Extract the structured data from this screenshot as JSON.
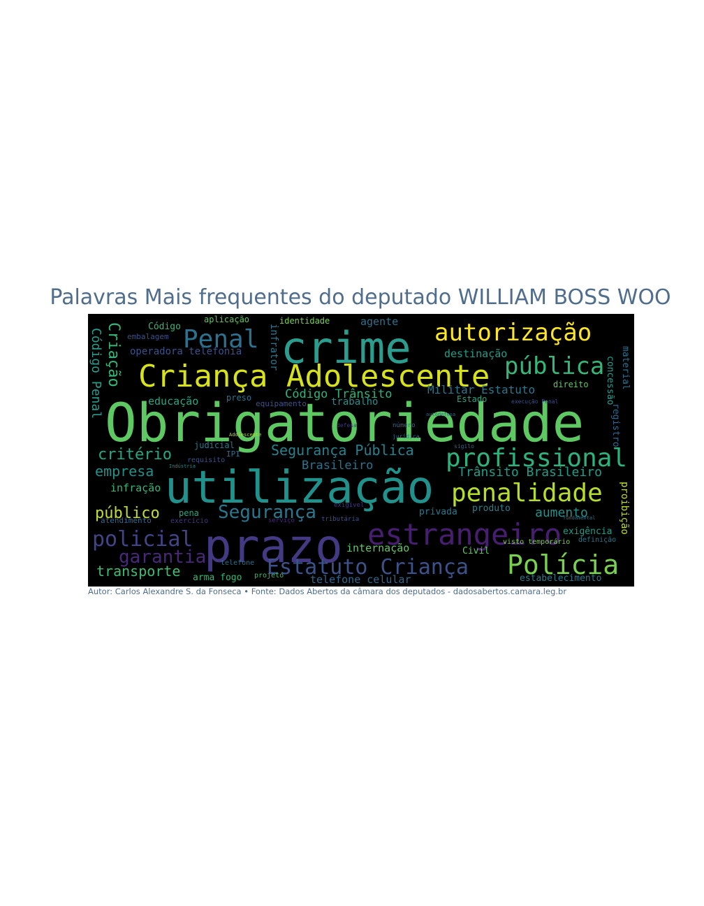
{
  "title": "Palavras Mais frequentes do deputado WILLIAM BOSS WOO",
  "caption": "Autor: Carlos Alexandre S. da Fonseca • Fonte: Dados Abertos da câmara dos deputados - dadosabertos.camara.leg.br",
  "word_cloud": {
    "background_color": "#000000",
    "palette": "viridis",
    "words": [
      {
        "text": "Obrigatoriedade",
        "color": "#5ec962"
      },
      {
        "text": "utilização",
        "color": "#21918c"
      },
      {
        "text": "prazo",
        "color": "#443983"
      },
      {
        "text": "crime",
        "color": "#2a9d8f"
      },
      {
        "text": "Criança Adolescente",
        "color": "#d8e219"
      },
      {
        "text": "estrangeiro",
        "color": "#481f70"
      },
      {
        "text": "Penal",
        "color": "#2c728e"
      },
      {
        "text": "autorização",
        "color": "#fde725"
      },
      {
        "text": "pública",
        "color": "#35b779"
      },
      {
        "text": "profissional",
        "color": "#2db27d"
      },
      {
        "text": "penalidade",
        "color": "#b5de2b"
      },
      {
        "text": "Polícia",
        "color": "#7ad151"
      },
      {
        "text": "Estatuto Criança",
        "color": "#3b528b"
      },
      {
        "text": "policial",
        "color": "#414487"
      },
      {
        "text": "garantia",
        "color": "#482878"
      },
      {
        "text": "Segurança",
        "color": "#2a788e"
      },
      {
        "text": "Segurança Pública",
        "color": "#26828e"
      },
      {
        "text": "critério",
        "color": "#22a884"
      },
      {
        "text": "público",
        "color": "#c0df25"
      },
      {
        "text": "empresa",
        "color": "#21918c"
      },
      {
        "text": "transporte",
        "color": "#3fbc73"
      },
      {
        "text": "Trânsito Brasileiro",
        "color": "#1f9e89"
      },
      {
        "text": "Código Trânsito",
        "color": "#2db27d"
      },
      {
        "text": "Brasileiro",
        "color": "#2c728e"
      },
      {
        "text": "aumento",
        "color": "#21918c"
      },
      {
        "text": "Militar Estatuto",
        "color": "#2a788e"
      },
      {
        "text": "Criação",
        "color": "#35b779"
      },
      {
        "text": "Código Penal",
        "color": "#2a9d8f"
      },
      {
        "text": "destinação",
        "color": "#1f9e89"
      },
      {
        "text": "educação",
        "color": "#22a884"
      },
      {
        "text": "operadora telefonia",
        "color": "#3b528b"
      },
      {
        "text": "infração",
        "color": "#35b779"
      },
      {
        "text": "internação",
        "color": "#5ec962"
      },
      {
        "text": "telefone celular",
        "color": "#31688e"
      },
      {
        "text": "estabelecimento",
        "color": "#2a788e"
      },
      {
        "text": "agente",
        "color": "#2c728e"
      },
      {
        "text": "trabalho",
        "color": "#21918c"
      },
      {
        "text": "equipamento",
        "color": "#3b528b"
      },
      {
        "text": "Código",
        "color": "#35b779"
      },
      {
        "text": "embalagem",
        "color": "#3b528b"
      },
      {
        "text": "infrator",
        "color": "#2a788e"
      },
      {
        "text": "aplicação",
        "color": "#5ec962"
      },
      {
        "text": "identidade",
        "color": "#7ad151"
      },
      {
        "text": "concessão",
        "color": "#2a9d8f"
      },
      {
        "text": "material",
        "color": "#2c728e"
      },
      {
        "text": "registro",
        "color": "#31688e"
      },
      {
        "text": "proibição",
        "color": "#c0df25"
      },
      {
        "text": "direito",
        "color": "#5ec962"
      },
      {
        "text": "Estado",
        "color": "#22a884"
      },
      {
        "text": "preso",
        "color": "#2c728e"
      },
      {
        "text": "judicial",
        "color": "#2a788e"
      },
      {
        "text": "requisito",
        "color": "#3b528b"
      },
      {
        "text": "IPI",
        "color": "#2c728e"
      },
      {
        "text": "pena",
        "color": "#22a884"
      },
      {
        "text": "atendimento",
        "color": "#31688e"
      },
      {
        "text": "exercício",
        "color": "#443983"
      },
      {
        "text": "produto",
        "color": "#26828e"
      },
      {
        "text": "privada",
        "color": "#2a788e"
      },
      {
        "text": "exigência",
        "color": "#1f9e89"
      },
      {
        "text": "arma fogo",
        "color": "#35b779"
      },
      {
        "text": "telefone",
        "color": "#2c728e"
      },
      {
        "text": "projeto",
        "color": "#3fbc73"
      },
      {
        "text": "Civil",
        "color": "#5ec962"
      },
      {
        "text": "visto temporário",
        "color": "#7ad151"
      },
      {
        "text": "definição",
        "color": "#2a788e"
      },
      {
        "text": "tributária",
        "color": "#3b528b"
      },
      {
        "text": "serviço",
        "color": "#482878"
      },
      {
        "text": "número",
        "color": "#31688e"
      },
      {
        "text": "exigível",
        "color": "#443983"
      },
      {
        "text": "fundamental",
        "color": "#2a788e"
      },
      {
        "text": "Adolescente",
        "color": "#b5de2b"
      },
      {
        "text": "execução Penal",
        "color": "#3b528b"
      },
      {
        "text": "defesa",
        "color": "#443983"
      },
      {
        "text": "sigilo",
        "color": "#31688e"
      },
      {
        "text": "jurídica",
        "color": "#2a788e"
      },
      {
        "text": "Indústria",
        "color": "#21918c"
      },
      {
        "text": "autodefesa",
        "color": "#2c728e"
      }
    ]
  }
}
